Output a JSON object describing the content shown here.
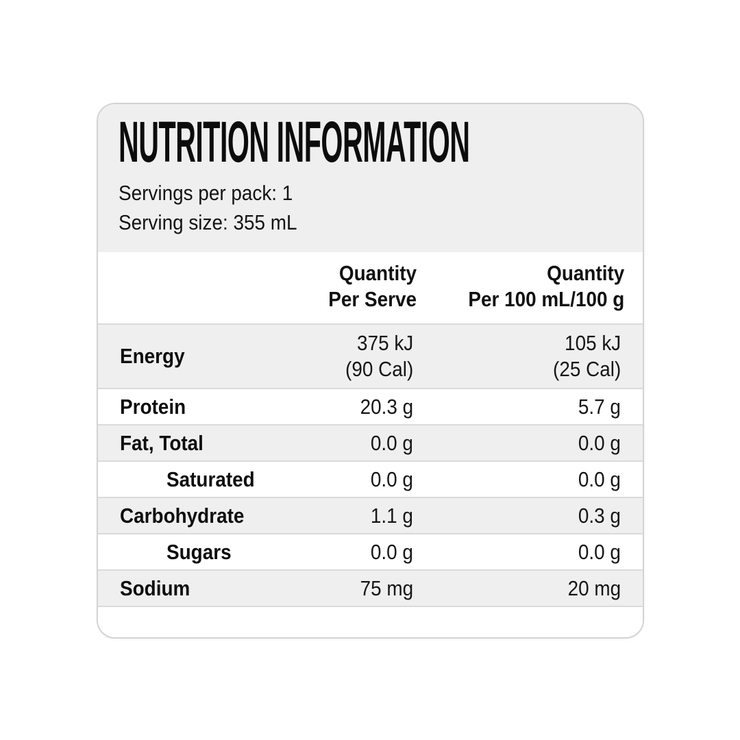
{
  "nutrition_panel": {
    "title": "NUTRITION INFORMATION",
    "servings_per_pack": "Servings per pack: 1",
    "serving_size": "Serving size: 355 mL",
    "columns": {
      "per_serve": "Quantity\nPer Serve",
      "per_100": "Quantity\nPer 100 mL/100 g"
    },
    "rows": [
      {
        "name": "Energy",
        "per_serve": "375 kJ\n(90 Cal)",
        "per_100": "105 kJ\n(25 Cal)"
      },
      {
        "name": "Protein",
        "per_serve": "20.3 g",
        "per_100": "5.7 g"
      },
      {
        "name": "Fat, Total",
        "per_serve": "0.0 g",
        "per_100": "0.0 g"
      },
      {
        "name": "Saturated",
        "per_serve": "0.0 g",
        "per_100": "0.0 g"
      },
      {
        "name": "Carbohydrate",
        "per_serve": "1.1 g",
        "per_100": "0.3 g"
      },
      {
        "name": "Sugars",
        "per_serve": "0.0 g",
        "per_100": "0.0 g"
      },
      {
        "name": "Sodium",
        "per_serve": "75 mg",
        "per_100": "20 mg"
      }
    ],
    "colors": {
      "shade_gray": "#efefef",
      "divider_gray": "#dadada",
      "card_border": "#d3d3d3",
      "text": "#111111"
    }
  }
}
